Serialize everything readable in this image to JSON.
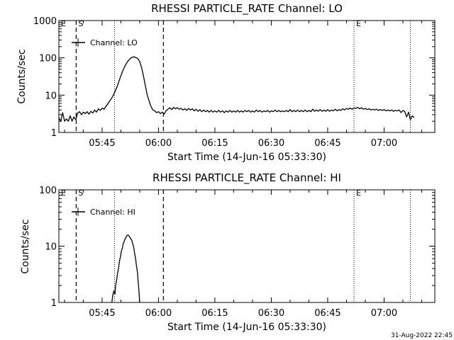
{
  "footer": {
    "timestamp": "31-Aug-2022 22:45"
  },
  "chart_data": [
    {
      "type": "line",
      "title": "RHESSI PARTICLE_RATE Channel: LO",
      "xlabel": "Start Time (14-Jun-16 05:33:30)",
      "ylabel": "Counts/sec",
      "yscale": "log",
      "ylim": [
        1,
        1000
      ],
      "xlim_minutes": [
        0,
        100
      ],
      "x_ticks": [
        {
          "label": "05:45",
          "min": 11.5
        },
        {
          "label": "06:00",
          "min": 26.5
        },
        {
          "label": "06:15",
          "min": 41.5
        },
        {
          "label": "06:30",
          "min": 56.5
        },
        {
          "label": "06:45",
          "min": 71.5
        },
        {
          "label": "07:00",
          "min": 86.5
        }
      ],
      "y_ticks": [
        {
          "label": "1",
          "value": 1
        },
        {
          "label": "10",
          "value": 10
        },
        {
          "label": "100",
          "value": 100
        },
        {
          "label": "1000",
          "value": 1000
        }
      ],
      "markers": [
        {
          "label": "E",
          "min": 0,
          "style": "none"
        },
        {
          "label": "S",
          "min": 4.6,
          "style": "dashed"
        },
        {
          "label": "",
          "min": 14.8,
          "style": "dotted"
        },
        {
          "label": "",
          "min": 27.8,
          "style": "dashed"
        },
        {
          "label": "E",
          "min": 78.5,
          "style": "dotted"
        },
        {
          "label": "",
          "min": 93.5,
          "style": "dotted"
        }
      ],
      "legend": {
        "label": "Channel: LO",
        "position": "top-left"
      },
      "series": [
        {
          "name": "Channel: LO",
          "points": [
            [
              0,
              2.5
            ],
            [
              0.5,
              2.0
            ],
            [
              1,
              3.4
            ],
            [
              1.5,
              2.0
            ],
            [
              2,
              2.3
            ],
            [
              2.5,
              2.0
            ],
            [
              3,
              2.8
            ],
            [
              3.5,
              2.0
            ],
            [
              4,
              2.6
            ],
            [
              4.5,
              2.2
            ],
            [
              5,
              3.3
            ],
            [
              5.5,
              3.6
            ],
            [
              6,
              3.0
            ],
            [
              6.5,
              3.5
            ],
            [
              7,
              3.2
            ],
            [
              7.5,
              3.6
            ],
            [
              8,
              3.1
            ],
            [
              8.5,
              3.7
            ],
            [
              9,
              3.3
            ],
            [
              9.5,
              4.0
            ],
            [
              10,
              3.5
            ],
            [
              10.5,
              4.3
            ],
            [
              11,
              3.9
            ],
            [
              11.5,
              4.5
            ],
            [
              12,
              4.2
            ],
            [
              12.5,
              5.0
            ],
            [
              13,
              5.8
            ],
            [
              13.5,
              7.0
            ],
            [
              14,
              8.2
            ],
            [
              14.5,
              10
            ],
            [
              15,
              13
            ],
            [
              15.5,
              17
            ],
            [
              16,
              24
            ],
            [
              16.5,
              33
            ],
            [
              17,
              45
            ],
            [
              17.5,
              58
            ],
            [
              18,
              72
            ],
            [
              18.5,
              85
            ],
            [
              19,
              96
            ],
            [
              19.5,
              104
            ],
            [
              20,
              106
            ],
            [
              20.5,
              102
            ],
            [
              21,
              95
            ],
            [
              21.5,
              80
            ],
            [
              22,
              55
            ],
            [
              22.5,
              32
            ],
            [
              23,
              18
            ],
            [
              23.5,
              10
            ],
            [
              24,
              7
            ],
            [
              24.5,
              5
            ],
            [
              25,
              4
            ],
            [
              25.5,
              3.8
            ],
            [
              26,
              3.4
            ],
            [
              26.5,
              3.6
            ],
            [
              27,
              3.2
            ],
            [
              27.5,
              3.5
            ],
            [
              28,
              3.1
            ],
            [
              28.5,
              3.8
            ],
            [
              29,
              4.2
            ],
            [
              29.5,
              4.6
            ],
            [
              30,
              4.1
            ],
            [
              30.5,
              4.7
            ],
            [
              31,
              4.3
            ],
            [
              31.5,
              4.6
            ],
            [
              32,
              4.2
            ],
            [
              32.5,
              4.4
            ],
            [
              33,
              4.0
            ],
            [
              33.5,
              4.3
            ],
            [
              34,
              3.9
            ],
            [
              34.5,
              4.4
            ],
            [
              35,
              4.0
            ],
            [
              35.5,
              4.3
            ],
            [
              36,
              3.8
            ],
            [
              36.5,
              4.2
            ],
            [
              37,
              3.7
            ],
            [
              37.5,
              4.1
            ],
            [
              38,
              3.6
            ],
            [
              38.5,
              4.0
            ],
            [
              39,
              3.6
            ],
            [
              39.5,
              3.9
            ],
            [
              40,
              3.5
            ],
            [
              40.5,
              3.9
            ],
            [
              41,
              3.5
            ],
            [
              41.5,
              3.8
            ],
            [
              42,
              3.5
            ],
            [
              42.5,
              3.9
            ],
            [
              43,
              3.5
            ],
            [
              43.5,
              3.8
            ],
            [
              44,
              3.4
            ],
            [
              44.5,
              3.8
            ],
            [
              45,
              3.5
            ],
            [
              45.5,
              3.9
            ],
            [
              46,
              3.5
            ],
            [
              46.5,
              3.8
            ],
            [
              47,
              3.5
            ],
            [
              47.5,
              3.9
            ],
            [
              48,
              3.5
            ],
            [
              48.5,
              3.8
            ],
            [
              49,
              3.5
            ],
            [
              49.5,
              3.9
            ],
            [
              50,
              3.6
            ],
            [
              50.5,
              3.9
            ],
            [
              51,
              3.5
            ],
            [
              51.5,
              3.8
            ],
            [
              52,
              3.5
            ],
            [
              52.5,
              4.0
            ],
            [
              53,
              3.6
            ],
            [
              53.5,
              3.9
            ],
            [
              54,
              3.5
            ],
            [
              54.5,
              3.8
            ],
            [
              55,
              3.6
            ],
            [
              55.5,
              3.9
            ],
            [
              56,
              3.5
            ],
            [
              56.5,
              3.8
            ],
            [
              57,
              3.6
            ],
            [
              57.5,
              4.0
            ],
            [
              58,
              3.6
            ],
            [
              58.5,
              3.9
            ],
            [
              59,
              3.6
            ],
            [
              59.5,
              3.8
            ],
            [
              60,
              3.6
            ],
            [
              60.5,
              3.9
            ],
            [
              61,
              3.6
            ],
            [
              61.5,
              4.1
            ],
            [
              62,
              3.6
            ],
            [
              62.5,
              3.9
            ],
            [
              63,
              3.6
            ],
            [
              63.5,
              4.0
            ],
            [
              64,
              3.6
            ],
            [
              64.5,
              3.9
            ],
            [
              65,
              3.6
            ],
            [
              65.5,
              4.0
            ],
            [
              66,
              3.6
            ],
            [
              66.5,
              3.9
            ],
            [
              67,
              3.6
            ],
            [
              67.5,
              4.2
            ],
            [
              68,
              3.7
            ],
            [
              68.5,
              4.0
            ],
            [
              69,
              3.7
            ],
            [
              69.5,
              4.1
            ],
            [
              70,
              3.7
            ],
            [
              70.5,
              4.0
            ],
            [
              71,
              3.7
            ],
            [
              71.5,
              4.1
            ],
            [
              72,
              3.7
            ],
            [
              72.5,
              4.0
            ],
            [
              73,
              3.8
            ],
            [
              73.5,
              4.2
            ],
            [
              74,
              3.8
            ],
            [
              74.5,
              4.1
            ],
            [
              75,
              3.9
            ],
            [
              75.5,
              4.3
            ],
            [
              76,
              4.0
            ],
            [
              76.5,
              4.4
            ],
            [
              77,
              4.2
            ],
            [
              77.5,
              4.5
            ],
            [
              78,
              4.2
            ],
            [
              78.5,
              4.6
            ],
            [
              79,
              4.4
            ],
            [
              79.5,
              4.7
            ],
            [
              80,
              4.3
            ],
            [
              80.5,
              4.6
            ],
            [
              81,
              4.2
            ],
            [
              81.5,
              4.4
            ],
            [
              82,
              4.1
            ],
            [
              82.5,
              4.3
            ],
            [
              83,
              4.0
            ],
            [
              83.5,
              4.2
            ],
            [
              84,
              4.0
            ],
            [
              84.5,
              4.2
            ],
            [
              85,
              3.9
            ],
            [
              85.5,
              4.1
            ],
            [
              86,
              3.9
            ],
            [
              86.5,
              4.1
            ],
            [
              87,
              3.8
            ],
            [
              87.5,
              4.0
            ],
            [
              88,
              3.8
            ],
            [
              88.5,
              4.0
            ],
            [
              89,
              3.7
            ],
            [
              89.5,
              3.9
            ],
            [
              90,
              3.8
            ],
            [
              90.5,
              4.0
            ],
            [
              91,
              3.4
            ],
            [
              91.5,
              3.9
            ],
            [
              92,
              3.6
            ],
            [
              92.5,
              2.6
            ],
            [
              93,
              3.5
            ],
            [
              93.5,
              2.2
            ],
            [
              94,
              2.8
            ],
            [
              94.5,
              2.5
            ]
          ]
        }
      ]
    },
    {
      "type": "line",
      "title": "RHESSI PARTICLE_RATE Channel: HI",
      "xlabel": "Start Time (14-Jun-16 05:33:30)",
      "ylabel": "Counts/sec",
      "yscale": "log",
      "ylim": [
        1,
        100
      ],
      "xlim_minutes": [
        0,
        100
      ],
      "x_ticks": [
        {
          "label": "05:45",
          "min": 11.5
        },
        {
          "label": "06:00",
          "min": 26.5
        },
        {
          "label": "06:15",
          "min": 41.5
        },
        {
          "label": "06:30",
          "min": 56.5
        },
        {
          "label": "06:45",
          "min": 71.5
        },
        {
          "label": "07:00",
          "min": 86.5
        }
      ],
      "y_ticks": [
        {
          "label": "1",
          "value": 1
        },
        {
          "label": "10",
          "value": 10
        },
        {
          "label": "100",
          "value": 100
        }
      ],
      "markers": [
        {
          "label": "E",
          "min": 0,
          "style": "none"
        },
        {
          "label": "S",
          "min": 4.6,
          "style": "dashed"
        },
        {
          "label": "",
          "min": 14.8,
          "style": "dotted"
        },
        {
          "label": "",
          "min": 27.8,
          "style": "dashed"
        },
        {
          "label": "E",
          "min": 78.5,
          "style": "dotted"
        },
        {
          "label": "",
          "min": 93.5,
          "style": "dotted"
        }
      ],
      "legend": {
        "label": "Channel: HI",
        "position": "top-left"
      },
      "series": [
        {
          "name": "Channel: HI",
          "points": [
            [
              14.1,
              1.0
            ],
            [
              14.3,
              1.3
            ],
            [
              14.6,
              1.6
            ],
            [
              14.9,
              1.4
            ],
            [
              15.1,
              2.0
            ],
            [
              15.4,
              2.6
            ],
            [
              15.6,
              3.3
            ],
            [
              15.9,
              4.2
            ],
            [
              16.1,
              5.3
            ],
            [
              16.4,
              6.6
            ],
            [
              16.6,
              8.0
            ],
            [
              16.9,
              9.4
            ],
            [
              17.1,
              11
            ],
            [
              17.4,
              12.3
            ],
            [
              17.6,
              13.4
            ],
            [
              17.9,
              14.6
            ],
            [
              18.1,
              15.4
            ],
            [
              18.4,
              15.9
            ],
            [
              18.6,
              15.2
            ],
            [
              18.9,
              14.4
            ],
            [
              19.1,
              13.6
            ],
            [
              19.4,
              12.6
            ],
            [
              19.6,
              11.2
            ],
            [
              19.9,
              9.6
            ],
            [
              20.1,
              7.8
            ],
            [
              20.4,
              6.1
            ],
            [
              20.6,
              4.6
            ],
            [
              20.9,
              3.4
            ],
            [
              21.1,
              2.3
            ],
            [
              21.3,
              1.6
            ],
            [
              21.5,
              1.0
            ]
          ]
        }
      ]
    }
  ]
}
